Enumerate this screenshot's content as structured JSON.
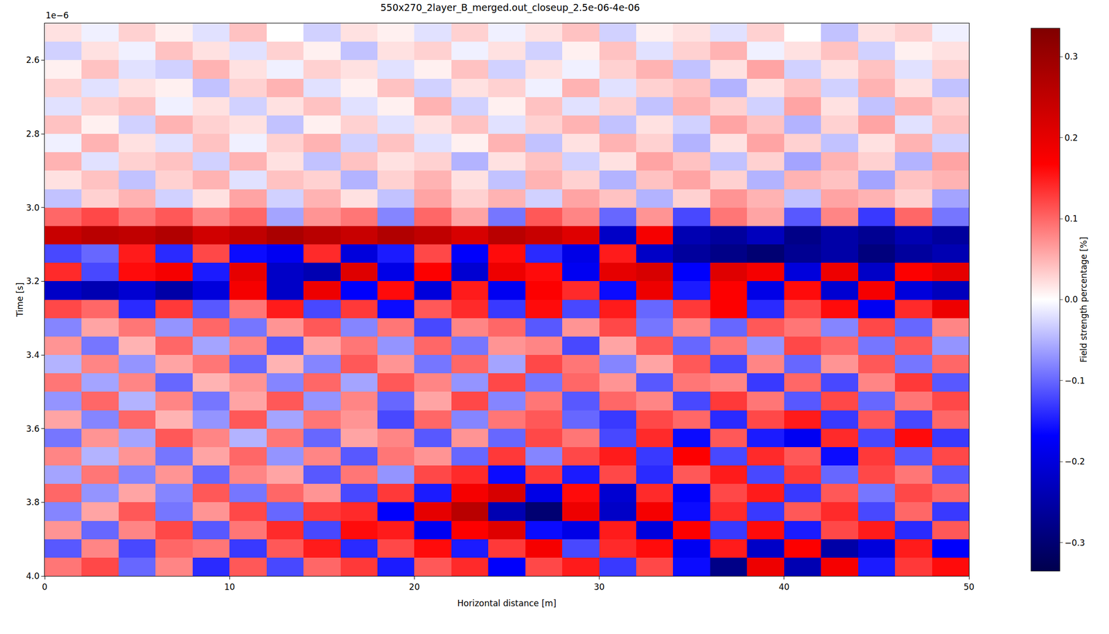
{
  "chart_data": {
    "type": "heatmap",
    "title": "550x270_2layer_B_merged.out_closeup_2.5e-06-4e-06",
    "x_label": "Horizontal distance [m]",
    "y_label": "Time [s]",
    "colorbar_title": "Field strength percentage [%]",
    "annotations": [
      {
        "text": "1e−6"
      }
    ],
    "grid": true,
    "x": [
      1,
      3,
      5,
      7,
      9,
      11,
      13,
      15,
      17,
      19,
      21,
      23,
      25,
      27,
      29,
      31,
      33,
      35,
      37,
      39,
      41,
      43,
      45,
      47,
      49
    ],
    "y": [
      2.525e-06,
      2.575e-06,
      2.625e-06,
      2.675e-06,
      2.725e-06,
      2.775e-06,
      2.825e-06,
      2.875e-06,
      2.925e-06,
      2.975e-06,
      3.025e-06,
      3.075e-06,
      3.125e-06,
      3.175e-06,
      3.225e-06,
      3.275e-06,
      3.325e-06,
      3.375e-06,
      3.425e-06,
      3.475e-06,
      3.525e-06,
      3.575e-06,
      3.625e-06,
      3.675e-06,
      3.725e-06,
      3.775e-06,
      3.825e-06,
      3.875e-06,
      3.925e-06,
      3.975e-06
    ],
    "xlim": [
      0,
      50
    ],
    "ylim": [
      4e-06,
      2.5e-06
    ],
    "xticks": [
      0,
      10,
      20,
      30,
      40,
      50
    ],
    "yticks": [
      {
        "value": 2.6e-06,
        "label": "2.6"
      },
      {
        "value": 2.8e-06,
        "label": "2.8"
      },
      {
        "value": 3e-06,
        "label": "3.0"
      },
      {
        "value": 3.2e-06,
        "label": "3.2"
      },
      {
        "value": 3.4e-06,
        "label": "3.4"
      },
      {
        "value": 3.6e-06,
        "label": "3.6"
      },
      {
        "value": 3.8e-06,
        "label": "3.8"
      },
      {
        "value": 4e-06,
        "label": "4.0"
      }
    ],
    "colorbar_range": [
      -0.335,
      0.335
    ],
    "colorbar_ticks": [
      {
        "value": -0.3,
        "label": "−0.3"
      },
      {
        "value": -0.2,
        "label": "−0.2"
      },
      {
        "value": -0.1,
        "label": "−0.1"
      },
      {
        "value": 0,
        "label": "0.0"
      },
      0.1,
      0.2,
      0.3
    ],
    "cells": [
      [
        0.02,
        -0.01,
        0.03,
        0.01,
        -0.02,
        0.04,
        0.0,
        -0.03,
        0.02,
        0.01,
        -0.02,
        0.03,
        -0.01,
        0.02,
        0.04,
        -0.03,
        0.01,
        0.02,
        -0.02,
        0.03,
        0.0,
        -0.04,
        0.02,
        0.03,
        -0.01
      ],
      [
        -0.03,
        0.02,
        -0.01,
        0.04,
        0.02,
        -0.02,
        0.03,
        0.01,
        -0.04,
        0.02,
        0.03,
        -0.01,
        0.02,
        -0.03,
        0.01,
        0.04,
        -0.02,
        0.03,
        0.05,
        -0.01,
        0.02,
        0.04,
        -0.03,
        0.01,
        0.02
      ],
      [
        0.01,
        0.04,
        -0.02,
        -0.03,
        0.05,
        0.02,
        -0.01,
        0.03,
        0.02,
        -0.02,
        0.01,
        0.04,
        -0.03,
        0.02,
        -0.01,
        0.03,
        0.05,
        -0.04,
        0.02,
        0.06,
        -0.03,
        0.02,
        0.04,
        -0.02,
        0.03
      ],
      [
        0.03,
        -0.02,
        0.02,
        0.01,
        -0.04,
        0.03,
        0.05,
        -0.02,
        0.01,
        0.04,
        -0.03,
        0.02,
        0.03,
        -0.01,
        0.05,
        -0.02,
        0.03,
        0.04,
        -0.05,
        0.02,
        0.04,
        -0.03,
        0.05,
        0.02,
        -0.04
      ],
      [
        -0.02,
        0.03,
        0.04,
        -0.01,
        0.02,
        -0.03,
        0.02,
        0.04,
        -0.02,
        0.01,
        0.05,
        -0.03,
        0.01,
        0.04,
        -0.02,
        0.03,
        -0.04,
        0.05,
        0.03,
        -0.03,
        0.06,
        0.02,
        -0.04,
        0.05,
        0.03
      ],
      [
        0.04,
        0.01,
        -0.03,
        0.05,
        0.03,
        0.02,
        -0.04,
        0.01,
        0.03,
        -0.02,
        0.02,
        0.04,
        -0.02,
        0.03,
        0.05,
        -0.04,
        0.02,
        -0.03,
        0.06,
        0.04,
        -0.05,
        0.03,
        0.06,
        -0.02,
        0.04
      ],
      [
        -0.01,
        0.05,
        0.02,
        -0.02,
        0.04,
        -0.01,
        0.03,
        0.05,
        -0.03,
        0.04,
        -0.02,
        0.01,
        0.05,
        -0.04,
        0.02,
        0.05,
        0.03,
        -0.05,
        0.02,
        0.06,
        0.03,
        -0.04,
        0.02,
        0.05,
        -0.03
      ],
      [
        0.05,
        -0.02,
        0.03,
        0.04,
        -0.03,
        0.05,
        0.02,
        -0.04,
        0.04,
        0.02,
        0.03,
        -0.05,
        0.02,
        0.04,
        -0.03,
        0.02,
        0.06,
        0.04,
        -0.04,
        0.03,
        -0.06,
        0.05,
        0.03,
        -0.05,
        0.06
      ],
      [
        0.02,
        0.04,
        -0.04,
        0.03,
        0.05,
        -0.02,
        0.04,
        0.03,
        -0.05,
        0.03,
        0.05,
        0.02,
        -0.04,
        0.05,
        0.03,
        -0.05,
        0.04,
        0.06,
        0.03,
        -0.05,
        0.05,
        0.04,
        -0.06,
        0.04,
        0.05
      ],
      [
        -0.04,
        0.03,
        0.05,
        -0.03,
        0.02,
        0.06,
        -0.03,
        0.05,
        0.02,
        -0.04,
        0.06,
        0.03,
        0.05,
        -0.03,
        0.06,
        0.04,
        -0.05,
        0.03,
        0.07,
        0.05,
        -0.04,
        0.06,
        0.05,
        0.03,
        -0.06
      ],
      [
        0.1,
        0.12,
        0.09,
        0.11,
        0.08,
        0.1,
        -0.06,
        0.07,
        0.09,
        -0.08,
        0.1,
        0.06,
        -0.09,
        0.11,
        0.08,
        -0.1,
        0.07,
        -0.12,
        0.09,
        0.06,
        -0.11,
        0.08,
        -0.13,
        0.1,
        -0.09
      ],
      [
        0.24,
        0.26,
        0.25,
        0.27,
        0.23,
        0.25,
        0.28,
        0.26,
        0.24,
        0.27,
        0.25,
        0.22,
        0.26,
        0.24,
        0.21,
        -0.22,
        0.18,
        -0.24,
        -0.26,
        -0.23,
        -0.28,
        -0.25,
        -0.27,
        -0.24,
        -0.26
      ],
      [
        -0.12,
        -0.1,
        0.15,
        -0.14,
        0.12,
        -0.16,
        -0.18,
        0.14,
        -0.2,
        -0.15,
        0.12,
        -0.17,
        0.16,
        -0.14,
        -0.19,
        0.15,
        -0.22,
        -0.26,
        -0.28,
        -0.3,
        -0.27,
        -0.25,
        -0.29,
        -0.26,
        -0.24
      ],
      [
        0.14,
        -0.12,
        0.16,
        0.18,
        -0.15,
        0.2,
        -0.22,
        -0.24,
        0.21,
        -0.19,
        0.17,
        -0.21,
        0.19,
        0.16,
        -0.18,
        0.2,
        0.22,
        -0.17,
        0.21,
        0.18,
        -0.2,
        0.19,
        -0.22,
        0.17,
        0.2
      ],
      [
        -0.22,
        -0.24,
        -0.21,
        -0.25,
        -0.2,
        0.18,
        -0.22,
        0.19,
        -0.17,
        0.16,
        -0.2,
        0.15,
        -0.18,
        0.17,
        0.14,
        -0.16,
        0.19,
        -0.15,
        0.17,
        -0.19,
        0.16,
        -0.21,
        0.18,
        -0.2,
        -0.23
      ],
      [
        0.12,
        0.1,
        -0.14,
        0.13,
        -0.11,
        0.09,
        0.15,
        -0.12,
        0.13,
        -0.16,
        0.11,
        0.14,
        -0.13,
        0.16,
        -0.12,
        0.15,
        -0.1,
        0.13,
        0.17,
        -0.14,
        0.12,
        0.16,
        -0.18,
        0.14,
        0.19
      ],
      [
        -0.08,
        0.06,
        0.09,
        -0.07,
        0.1,
        -0.09,
        0.07,
        0.11,
        -0.08,
        0.09,
        -0.12,
        0.08,
        0.1,
        -0.11,
        0.07,
        0.12,
        -0.09,
        0.08,
        -0.1,
        0.11,
        0.09,
        -0.08,
        0.12,
        -0.1,
        0.08
      ],
      [
        0.07,
        -0.09,
        0.05,
        0.1,
        -0.06,
        0.08,
        -0.11,
        0.06,
        0.09,
        -0.07,
        0.1,
        -0.09,
        0.07,
        0.08,
        -0.12,
        0.06,
        0.11,
        -0.1,
        0.09,
        -0.07,
        0.12,
        0.1,
        -0.09,
        0.11,
        -0.07
      ],
      [
        -0.05,
        0.08,
        -0.07,
        0.06,
        0.09,
        -0.1,
        0.05,
        -0.08,
        0.11,
        0.07,
        -0.09,
        0.1,
        -0.06,
        0.12,
        0.09,
        -0.08,
        0.06,
        0.11,
        -0.12,
        0.08,
        -0.1,
        0.07,
        0.11,
        -0.09,
        0.1
      ],
      [
        0.09,
        -0.06,
        0.08,
        -0.1,
        0.05,
        0.07,
        -0.08,
        0.1,
        -0.06,
        0.11,
        0.08,
        -0.07,
        0.12,
        -0.09,
        0.1,
        0.07,
        -0.11,
        0.09,
        0.08,
        -0.13,
        0.1,
        -0.12,
        0.08,
        0.13,
        -0.11
      ],
      [
        -0.07,
        0.1,
        -0.05,
        0.08,
        -0.09,
        0.06,
        0.11,
        -0.07,
        0.08,
        -0.1,
        0.06,
        0.12,
        -0.08,
        0.09,
        -0.11,
        0.1,
        0.08,
        -0.12,
        0.13,
        0.09,
        -0.11,
        0.12,
        -0.1,
        0.09,
        0.12
      ],
      [
        0.06,
        -0.08,
        0.1,
        0.05,
        -0.07,
        0.11,
        -0.06,
        0.09,
        0.07,
        -0.12,
        0.1,
        -0.08,
        0.09,
        0.11,
        -0.1,
        -0.13,
        0.12,
        0.1,
        -0.14,
        0.12,
        0.15,
        -0.13,
        0.11,
        -0.12,
        0.1
      ],
      [
        -0.09,
        0.07,
        -0.06,
        0.11,
        0.08,
        -0.05,
        0.09,
        -0.1,
        0.06,
        0.08,
        -0.11,
        0.07,
        -0.1,
        0.12,
        0.09,
        -0.12,
        0.14,
        -0.16,
        0.11,
        -0.15,
        -0.18,
        0.14,
        -0.12,
        0.16,
        -0.13
      ],
      [
        0.08,
        -0.05,
        0.07,
        -0.09,
        0.06,
        0.1,
        -0.07,
        0.08,
        -0.11,
        0.09,
        0.07,
        -0.1,
        0.13,
        -0.08,
        0.12,
        0.15,
        -0.13,
        0.17,
        -0.12,
        0.14,
        0.11,
        -0.16,
        0.13,
        -0.11,
        0.12
      ],
      [
        -0.06,
        0.09,
        -0.08,
        0.07,
        -0.1,
        0.08,
        0.06,
        -0.11,
        0.09,
        -0.07,
        0.12,
        0.14,
        -0.16,
        0.13,
        -0.15,
        0.12,
        -0.14,
        0.11,
        0.15,
        -0.12,
        0.13,
        -0.1,
        0.12,
        0.09,
        -0.11
      ],
      [
        0.1,
        -0.07,
        0.06,
        -0.08,
        0.11,
        -0.09,
        0.1,
        0.07,
        -0.12,
        0.13,
        -0.15,
        0.18,
        0.22,
        -0.19,
        0.16,
        -0.21,
        0.14,
        -0.17,
        0.12,
        0.15,
        -0.13,
        0.11,
        -0.09,
        0.12,
        0.1
      ],
      [
        -0.08,
        0.06,
        0.11,
        -0.09,
        0.07,
        0.12,
        -0.1,
        0.13,
        0.14,
        -0.17,
        0.2,
        0.26,
        -0.24,
        -0.3,
        0.19,
        -0.22,
        0.18,
        -0.16,
        0.14,
        -0.13,
        0.11,
        0.14,
        -0.12,
        0.1,
        -0.13
      ],
      [
        0.07,
        -0.1,
        0.08,
        0.12,
        -0.11,
        0.09,
        0.14,
        -0.12,
        0.16,
        0.15,
        -0.18,
        0.17,
        0.21,
        -0.16,
        -0.19,
        0.15,
        -0.2,
        0.17,
        -0.13,
        0.16,
        -0.15,
        0.12,
        0.15,
        -0.14,
        0.11
      ],
      [
        -0.11,
        0.08,
        -0.12,
        0.1,
        0.09,
        -0.13,
        0.11,
        0.15,
        -0.14,
        0.12,
        0.16,
        -0.15,
        0.13,
        0.18,
        -0.12,
        0.14,
        0.16,
        -0.18,
        0.15,
        -0.22,
        0.17,
        -0.25,
        -0.2,
        0.15,
        -0.17
      ],
      [
        0.09,
        0.12,
        -0.1,
        0.08,
        -0.14,
        0.11,
        -0.12,
        0.1,
        0.13,
        -0.15,
        0.11,
        0.14,
        -0.17,
        0.12,
        0.15,
        -0.13,
        0.12,
        -0.16,
        -0.28,
        0.19,
        -0.24,
        0.18,
        -0.15,
        0.13,
        0.16
      ]
    ]
  }
}
